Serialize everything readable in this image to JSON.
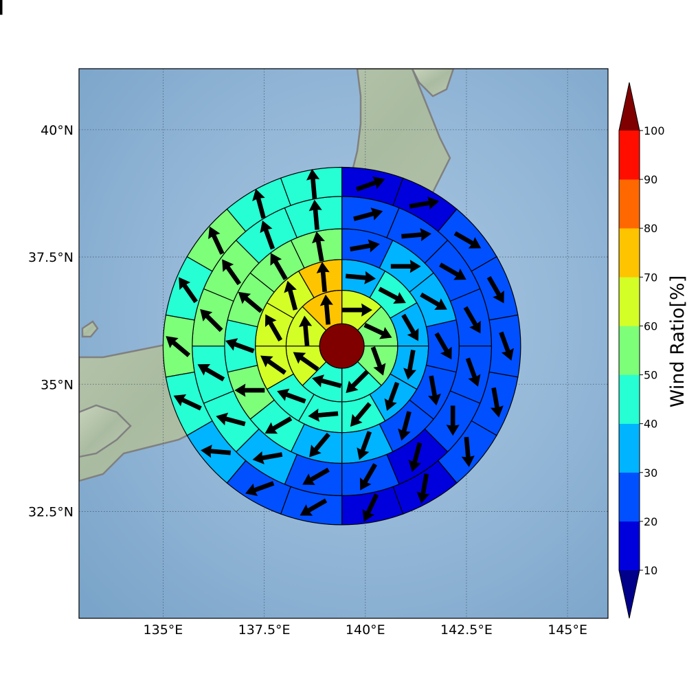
{
  "map": {
    "lon_range": [
      132.92,
      146.0
    ],
    "lat_range": [
      30.4,
      41.2
    ],
    "lon_ticks": [
      135,
      137.5,
      140,
      142.5,
      145
    ],
    "lat_ticks": [
      32.5,
      35,
      37.5,
      40
    ],
    "lon_tick_labels": [
      "135°E",
      "137.5°E",
      "140°E",
      "142.5°E",
      "145°E"
    ],
    "lat_tick_labels": [
      "32.5°N",
      "35°N",
      "37.5°N",
      "40°N"
    ],
    "grid": true,
    "background": "shaded relief with Japan coastline (gray)",
    "coastline_color": "#808080",
    "ocean_color": "#8fb3d4",
    "land_color": "#b9c9b0"
  },
  "polar_grid": {
    "center": {
      "lon": 139.42,
      "lat": 35.75
    },
    "ring_radii_deg": [
      0.55,
      1.38,
      2.14,
      2.9,
      3.7,
      4.42
    ],
    "core_value": 100,
    "rings": [
      {
        "values": [
          65,
          55,
          55,
          40,
          40,
          60,
          60,
          75
        ],
        "arrow_dirs": [
          90,
          115,
          160,
          225,
          285,
          305,
          355,
          355
        ]
      },
      {
        "values": [
          35,
          40,
          35,
          30,
          30,
          45,
          40,
          40,
          60,
          60,
          65,
          70
        ],
        "arrow_dirs": [
          95,
          118,
          150,
          190,
          200,
          220,
          265,
          290,
          305,
          330,
          345,
          355
        ]
      },
      {
        "values": [
          25,
          35,
          35,
          25,
          20,
          20,
          30,
          35,
          40,
          50,
          45,
          50,
          55,
          55
        ],
        "arrow_dirs": [
          80,
          90,
          120,
          150,
          170,
          195,
          200,
          220,
          240,
          270,
          290,
          310,
          330,
          350
        ]
      },
      {
        "values": [
          20,
          25,
          25,
          20,
          20,
          20,
          15,
          20,
          25,
          35,
          45,
          45,
          50,
          50,
          45,
          40
        ],
        "arrow_dirs": [
          75,
          85,
          120,
          150,
          160,
          180,
          195,
          210,
          240,
          260,
          285,
          300,
          315,
          325,
          340,
          355
        ]
      },
      {
        "values": [
          15,
          15,
          25,
          25,
          20,
          20,
          20,
          15,
          15,
          20,
          25,
          30,
          40,
          50,
          45,
          50,
          45,
          45
        ],
        "arrow_dirs": [
          70,
          80,
          120,
          150,
          160,
          170,
          175,
          190,
          205,
          240,
          250,
          275,
          295,
          310,
          325,
          335,
          345,
          355
        ]
      },
      {
        "values": [
          15,
          15,
          15,
          15,
          15,
          20,
          20,
          15,
          15,
          15,
          15,
          25,
          35,
          40,
          40,
          40,
          40,
          45,
          35
        ],
        "arrow_dirs": [
          70,
          80,
          100,
          120,
          145,
          160,
          170,
          185,
          195,
          210,
          240,
          270,
          285,
          300,
          320,
          340,
          350,
          355,
          10
        ]
      }
    ]
  },
  "colorbar": {
    "title": "Wind Ratio[%]",
    "levels": [
      10,
      20,
      30,
      40,
      50,
      60,
      70,
      80,
      90,
      100
    ],
    "tick_labels": [
      "100",
      "90",
      "80",
      "70",
      "60",
      "50",
      "40",
      "30",
      "20",
      "10"
    ],
    "colors": [
      "#0000dd",
      "#0050ff",
      "#00b4ff",
      "#26ffd4",
      "#7dff7a",
      "#d4ff26",
      "#ffc400",
      "#ff6800",
      "#ff0e00"
    ],
    "under_color": "#00008b",
    "over_color": "#800000",
    "extend": "both"
  },
  "arrow_color": "#000000"
}
